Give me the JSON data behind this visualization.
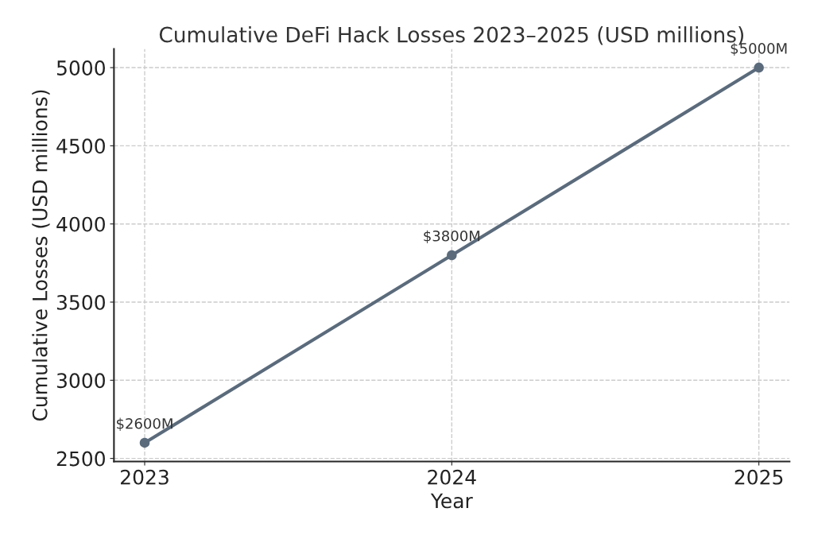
{
  "chart_data": {
    "type": "line",
    "title": "Cumulative DeFi Hack Losses 2023–2025 (USD millions)",
    "xlabel": "Year",
    "ylabel": "Cumulative Losses (USD millions)",
    "x": [
      2023,
      2024,
      2025
    ],
    "series": [
      {
        "color": "#5b6b7c",
        "values": [
          2600,
          3800,
          5000
        ],
        "value_labels": [
          "$2600M",
          "$3800M",
          "$5000M"
        ]
      }
    ],
    "xlim": [
      2022.9,
      2025.1
    ],
    "xticks": [
      2023,
      2024,
      2025
    ],
    "ylim": [
      2480,
      5120
    ],
    "yticks": [
      2500,
      3000,
      3500,
      4000,
      4500,
      5000
    ],
    "grid": true,
    "marker": "circle",
    "line_style": "solid"
  }
}
